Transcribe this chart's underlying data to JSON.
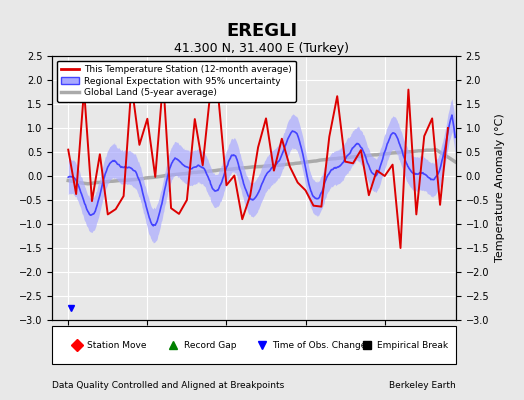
{
  "title": "EREGLI",
  "subtitle": "41.300 N, 31.400 E (Turkey)",
  "xlabel_bottom": "Data Quality Controlled and Aligned at Breakpoints",
  "xlabel_right": "Berkeley Earth",
  "ylabel": "Temperature Anomaly (°C)",
  "xlim": [
    1948,
    1999
  ],
  "ylim": [
    -3.0,
    2.5
  ],
  "yticks": [
    -3,
    -2.5,
    -2,
    -1.5,
    -1,
    -0.5,
    0,
    0.5,
    1,
    1.5,
    2,
    2.5
  ],
  "xticks": [
    1950,
    1960,
    1970,
    1980,
    1990
  ],
  "bg_color": "#e8e8e8",
  "plot_bg_color": "#e8e8e8",
  "grid_color": "#ffffff",
  "regional_color": "#4444ff",
  "regional_fill_color": "#aaaaff",
  "station_color": "#dd0000",
  "global_color": "#aaaaaa",
  "seed": 42
}
